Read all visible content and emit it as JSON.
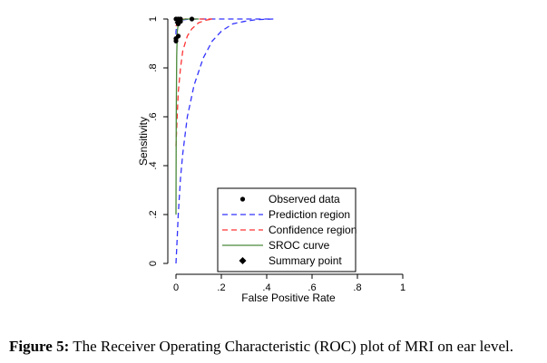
{
  "chart_data": {
    "type": "roc",
    "title": "",
    "xlabel": "False Positive Rate",
    "ylabel": "Sensitivity",
    "xlim": [
      0,
      1
    ],
    "ylim": [
      0,
      1
    ],
    "x_ticks": [
      0,
      0.2,
      0.4,
      0.6,
      0.8,
      1
    ],
    "x_tick_labels": [
      "0",
      ".2",
      ".4",
      ".6",
      ".8",
      "1"
    ],
    "y_ticks": [
      0,
      0.2,
      0.4,
      0.6,
      0.8,
      1
    ],
    "y_tick_labels": [
      "0",
      ".2",
      ".4",
      ".6",
      ".8",
      "1"
    ],
    "grid": false,
    "legend_position": "bottom-right",
    "series": [
      {
        "name": "Observed data",
        "kind": "points",
        "color": "#000000",
        "points": [
          [
            0.0,
            1.0
          ],
          [
            0.01,
            1.0
          ],
          [
            0.02,
            1.0
          ],
          [
            0.07,
            1.0
          ],
          [
            0.02,
            0.99
          ],
          [
            0.01,
            0.98
          ],
          [
            0.0,
            0.92
          ],
          [
            0.01,
            0.93
          ],
          [
            0.0,
            0.91
          ]
        ]
      },
      {
        "name": "Prediction region",
        "kind": "dashed-curves",
        "color": "#3333ff",
        "curves": [
          [
            [
              0.0,
              0.0
            ],
            [
              0.005,
              0.1
            ],
            [
              0.01,
              0.2
            ],
            [
              0.02,
              0.35
            ],
            [
              0.03,
              0.45
            ],
            [
              0.05,
              0.6
            ],
            [
              0.08,
              0.73
            ],
            [
              0.12,
              0.84
            ],
            [
              0.16,
              0.91
            ],
            [
              0.2,
              0.95
            ],
            [
              0.25,
              0.98
            ],
            [
              0.3,
              0.99
            ],
            [
              0.35,
              0.997
            ],
            [
              0.4,
              0.999
            ],
            [
              0.43,
              1.0
            ]
          ],
          [
            [
              0.0,
              0.9
            ],
            [
              0.0,
              0.95
            ],
            [
              0.005,
              0.98
            ],
            [
              0.01,
              0.99
            ],
            [
              0.02,
              0.995
            ],
            [
              0.05,
              0.999
            ],
            [
              0.1,
              1.0
            ],
            [
              0.43,
              1.0
            ]
          ]
        ]
      },
      {
        "name": "Confidence region",
        "kind": "dashed-curves",
        "color": "#ff3333",
        "curves": [
          [
            [
              0.0,
              0.48
            ],
            [
              0.005,
              0.6
            ],
            [
              0.01,
              0.7
            ],
            [
              0.02,
              0.8
            ],
            [
              0.03,
              0.87
            ],
            [
              0.05,
              0.93
            ],
            [
              0.07,
              0.96
            ],
            [
              0.1,
              0.985
            ],
            [
              0.13,
              0.995
            ],
            [
              0.16,
              1.0
            ]
          ],
          [
            [
              0.0,
              0.97
            ],
            [
              0.005,
              0.985
            ],
            [
              0.01,
              0.992
            ],
            [
              0.02,
              0.997
            ],
            [
              0.04,
              1.0
            ],
            [
              0.16,
              1.0
            ]
          ]
        ]
      },
      {
        "name": "SROC curve",
        "kind": "line",
        "color": "#4a8a3a",
        "points": [
          [
            0.0,
            0.2
          ],
          [
            0.001,
            0.6
          ],
          [
            0.003,
            0.85
          ],
          [
            0.006,
            0.95
          ],
          [
            0.01,
            0.98
          ],
          [
            0.02,
            0.995
          ],
          [
            0.04,
            1.0
          ],
          [
            0.1,
            1.0
          ]
        ]
      },
      {
        "name": "Summary point",
        "kind": "diamond",
        "color": "#000000",
        "points": [
          [
            0.01,
            0.985
          ]
        ]
      }
    ]
  },
  "caption": {
    "label": "Figure 5:",
    "text": "The Receiver Operating Characteristic (ROC) plot of MRI on ear level."
  }
}
